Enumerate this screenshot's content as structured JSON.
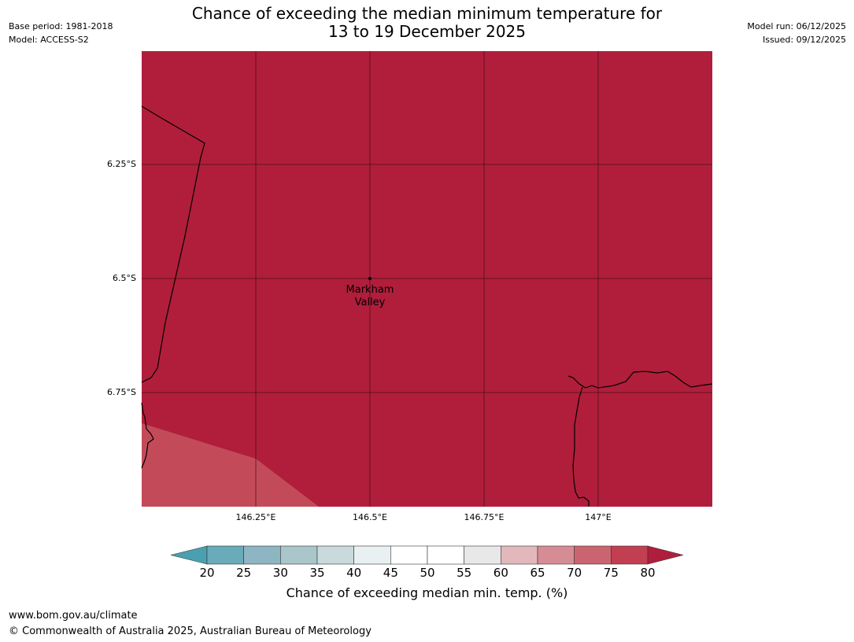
{
  "title": {
    "line1": "Chance of exceeding the median minimum temperature for",
    "line2": "13 to 19 December 2025"
  },
  "meta_left": {
    "base_period": "Base period: 1981-2018",
    "model": "Model: ACCESS-S2"
  },
  "meta_right": {
    "model_run": "Model run: 06/12/2025",
    "issued": "Issued: 09/12/2025"
  },
  "map": {
    "fill_color_main": "#b01e3b",
    "fill_color_secondary": "#c34b59",
    "latitude_labels": [
      "6.25°S",
      "6.5°S",
      "6.75°S"
    ],
    "longitude_labels": [
      "146.25°E",
      "146.5°E",
      "146.75°E",
      "147°E"
    ],
    "place": {
      "name_line1": "Markham",
      "name_line2": "Valley",
      "lat": -6.5,
      "lon": 146.5
    }
  },
  "colorbar": {
    "ticks": [
      "20",
      "25",
      "30",
      "35",
      "40",
      "45",
      "50",
      "55",
      "60",
      "65",
      "70",
      "75",
      "80"
    ],
    "colors": [
      "#6aabba",
      "#8eb6c2",
      "#a9c6cb",
      "#c9d9dc",
      "#e8f0f2",
      "#ffffff",
      "#ffffff",
      "#e8e8e8",
      "#e2b8bd",
      "#d68c94",
      "#cb6471",
      "#c13f51"
    ],
    "low_extend_color": "#4aa0b0",
    "high_extend_color": "#b01e3b",
    "label": "Chance of exceeding median min. temp. (%)"
  },
  "footer": {
    "url": "www.bom.gov.au/climate",
    "copyright": "© Commonwealth of Australia 2025, Australian Bureau of Meteorology"
  }
}
